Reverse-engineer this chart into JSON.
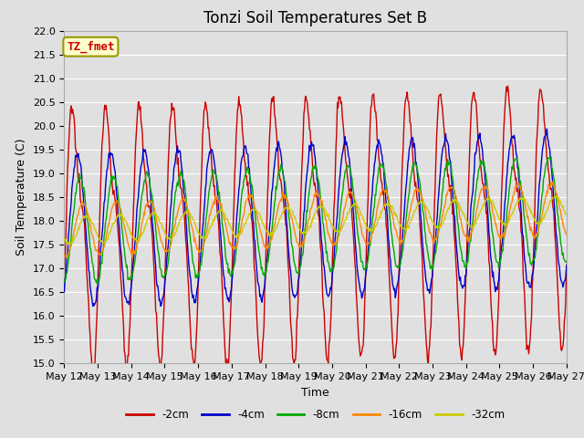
{
  "title": "Tonzi Soil Temperatures Set B",
  "xlabel": "Time",
  "ylabel": "Soil Temperature (C)",
  "ylim": [
    15.0,
    22.0
  ],
  "yticks": [
    15.0,
    15.5,
    16.0,
    16.5,
    17.0,
    17.5,
    18.0,
    18.5,
    19.0,
    19.5,
    20.0,
    20.5,
    21.0,
    21.5,
    22.0
  ],
  "xtick_labels": [
    "May 12",
    "May 13",
    "May 14",
    "May 15",
    "May 16",
    "May 17",
    "May 18",
    "May 19",
    "May 20",
    "May 21",
    "May 22",
    "May 23",
    "May 24",
    "May 25",
    "May 26",
    "May 27"
  ],
  "series_labels": [
    "-2cm",
    "-4cm",
    "-8cm",
    "-16cm",
    "-32cm"
  ],
  "series_colors": [
    "#cc0000",
    "#0000cc",
    "#00aa00",
    "#ff8800",
    "#cccc00"
  ],
  "annotation_text": "TZ_fmet",
  "annotation_color": "#cc0000",
  "annotation_bg": "#ffffcc",
  "annotation_border": "#999900",
  "background_color": "#e0e0e0",
  "grid_color": "#ffffff",
  "title_fontsize": 12,
  "axis_fontsize": 9,
  "tick_fontsize": 8,
  "n_points": 720,
  "amp_2cm": 3.2,
  "amp_4cm": 1.6,
  "amp_8cm": 1.1,
  "amp_16cm": 0.55,
  "amp_32cm": 0.28,
  "base_mean": 17.8,
  "trend": 0.03,
  "phase_2cm": -0.4,
  "phase_4cm": -0.9,
  "phase_8cm": -1.4,
  "phase_16cm": -1.9,
  "phase_32cm": -2.6
}
